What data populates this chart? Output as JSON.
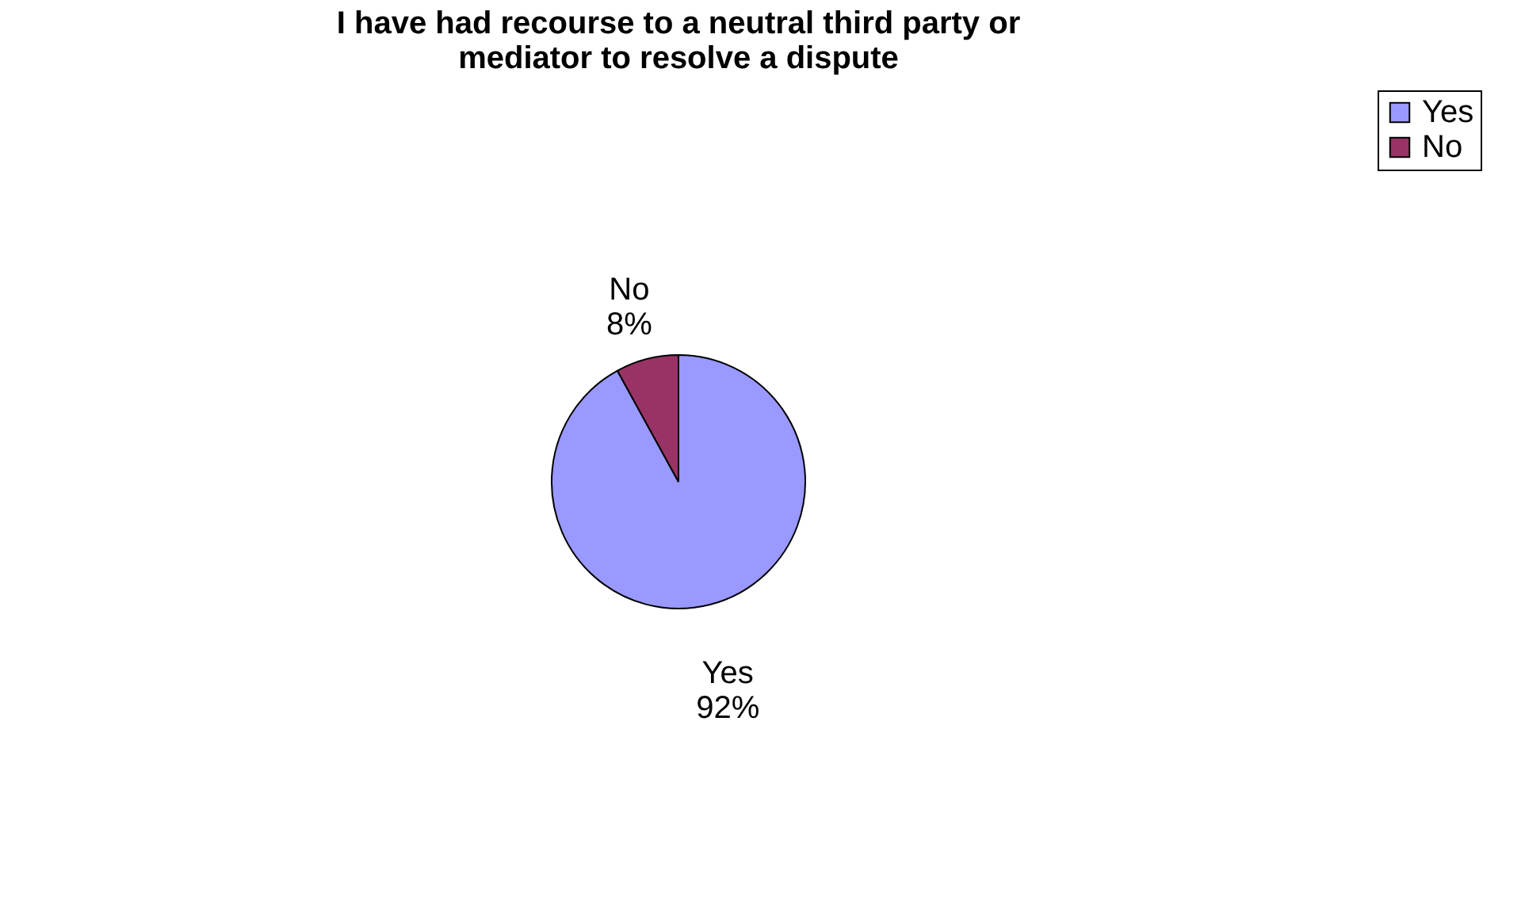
{
  "chart_data": {
    "type": "pie",
    "title": [
      "I have had recourse to a neutral third party or",
      "mediator to resolve a dispute"
    ],
    "categories": [
      "Yes",
      "No"
    ],
    "values": [
      92,
      8
    ],
    "value_labels": [
      "92%",
      "8%"
    ],
    "colors": [
      "#9999ff",
      "#993366"
    ],
    "legend": "right"
  }
}
